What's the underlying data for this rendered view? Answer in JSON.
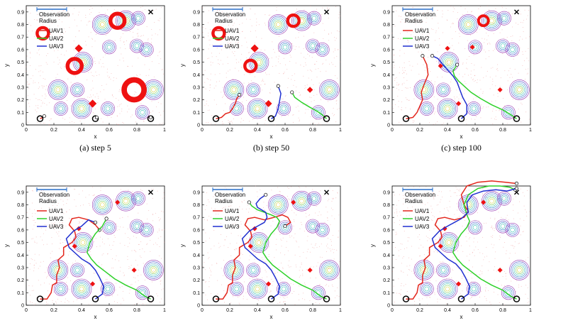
{
  "colors": {
    "uav1": "#e3261c",
    "uav2": "#2fd12a",
    "uav3": "#1f2fd0",
    "obs_bar": "#2a6fc9",
    "target": "#ee1111",
    "noise": "#e86a6a"
  },
  "common": {
    "xlabel": "x",
    "ylabel": "y",
    "xlim": [
      0,
      1
    ],
    "ylim": [
      0,
      0.95
    ],
    "xticks": [
      "0",
      "0.2",
      "0.4",
      "0.6",
      "0.8",
      "1"
    ],
    "yticks": [
      "0",
      "0.1",
      "0.2",
      "0.3",
      "0.4",
      "0.5",
      "0.6",
      "0.7",
      "0.8",
      "0.9"
    ],
    "legend": {
      "obs_line1": "Observation",
      "obs_line2": "Radius",
      "uav1": "UAV1",
      "uav2": "UAV2",
      "uav3": "UAV3"
    }
  },
  "chart_data": [
    {
      "type": "line",
      "caption": "(a)  step 5",
      "series": [
        {
          "name": "UAV1",
          "x": [
            0.1,
            0.12,
            0.13
          ],
          "y": [
            0.05,
            0.06,
            0.07
          ]
        },
        {
          "name": "UAV2",
          "x": [
            0.9,
            0.9
          ],
          "y": [
            0.05,
            0.06
          ]
        },
        {
          "name": "UAV3",
          "x": [
            0.5,
            0.51
          ],
          "y": [
            0.05,
            0.06
          ]
        }
      ],
      "targets": [
        [
          0.66,
          0.83
        ],
        [
          0.12,
          0.73
        ],
        [
          0.38,
          0.61
        ],
        [
          0.35,
          0.47
        ],
        [
          0.48,
          0.17
        ],
        [
          0.78,
          0.28
        ]
      ],
      "target_sizes": [
        10,
        8,
        6,
        10,
        6,
        14
      ]
    },
    {
      "type": "line",
      "caption": "(b)  step 50",
      "series": [
        {
          "name": "UAV1",
          "x": [
            0.1,
            0.14,
            0.17,
            0.2,
            0.22,
            0.24,
            0.25,
            0.27
          ],
          "y": [
            0.05,
            0.06,
            0.09,
            0.1,
            0.13,
            0.17,
            0.21,
            0.24
          ]
        },
        {
          "name": "UAV2",
          "x": [
            0.9,
            0.87,
            0.83,
            0.78,
            0.72,
            0.67,
            0.65
          ],
          "y": [
            0.05,
            0.08,
            0.11,
            0.14,
            0.18,
            0.22,
            0.26
          ]
        },
        {
          "name": "UAV3",
          "x": [
            0.5,
            0.53,
            0.55,
            0.56,
            0.57,
            0.55
          ],
          "y": [
            0.05,
            0.07,
            0.13,
            0.19,
            0.25,
            0.31
          ]
        }
      ],
      "targets": [
        [
          0.66,
          0.83
        ],
        [
          0.12,
          0.73
        ],
        [
          0.38,
          0.61
        ],
        [
          0.35,
          0.47
        ],
        [
          0.48,
          0.17
        ],
        [
          0.78,
          0.28
        ]
      ],
      "target_sizes": [
        8,
        8,
        6,
        8,
        5,
        4
      ]
    },
    {
      "type": "line",
      "caption": "(c)  step 100",
      "series": [
        {
          "name": "UAV1",
          "x": [
            0.1,
            0.15,
            0.18,
            0.2,
            0.22,
            0.21,
            0.23,
            0.26,
            0.25,
            0.22
          ],
          "y": [
            0.05,
            0.06,
            0.1,
            0.15,
            0.2,
            0.26,
            0.32,
            0.4,
            0.48,
            0.55
          ]
        },
        {
          "name": "UAV2",
          "x": [
            0.9,
            0.86,
            0.8,
            0.72,
            0.64,
            0.57,
            0.52,
            0.48,
            0.45,
            0.44,
            0.47
          ],
          "y": [
            0.05,
            0.08,
            0.12,
            0.16,
            0.21,
            0.26,
            0.31,
            0.35,
            0.39,
            0.43,
            0.48
          ]
        },
        {
          "name": "UAV3",
          "x": [
            0.5,
            0.54,
            0.54,
            0.51,
            0.49,
            0.47,
            0.44,
            0.4,
            0.36,
            0.33,
            0.29
          ],
          "y": [
            0.05,
            0.09,
            0.16,
            0.22,
            0.28,
            0.34,
            0.39,
            0.44,
            0.49,
            0.53,
            0.55
          ]
        }
      ],
      "targets": [
        [
          0.66,
          0.83
        ],
        [
          0.58,
          0.62
        ],
        [
          0.4,
          0.61
        ],
        [
          0.35,
          0.47
        ],
        [
          0.48,
          0.17
        ],
        [
          0.78,
          0.28
        ]
      ],
      "target_sizes": [
        7,
        3,
        3,
        3,
        3,
        3
      ]
    },
    {
      "type": "line",
      "caption": "",
      "series": [
        {
          "name": "UAV1",
          "x": [
            0.1,
            0.15,
            0.18,
            0.19,
            0.22,
            0.22,
            0.24,
            0.23,
            0.27,
            0.27,
            0.33,
            0.36,
            0.35,
            0.31,
            0.33,
            0.38,
            0.45,
            0.5,
            0.53
          ],
          "y": [
            0.05,
            0.05,
            0.1,
            0.16,
            0.18,
            0.24,
            0.3,
            0.36,
            0.4,
            0.46,
            0.5,
            0.54,
            0.59,
            0.64,
            0.69,
            0.7,
            0.68,
            0.64,
            0.6
          ]
        },
        {
          "name": "UAV2",
          "x": [
            0.9,
            0.86,
            0.8,
            0.72,
            0.64,
            0.57,
            0.51,
            0.47,
            0.44,
            0.46,
            0.5,
            0.55,
            0.58
          ],
          "y": [
            0.05,
            0.07,
            0.12,
            0.16,
            0.21,
            0.27,
            0.32,
            0.37,
            0.42,
            0.5,
            0.57,
            0.63,
            0.69
          ]
        },
        {
          "name": "UAV3",
          "x": [
            0.5,
            0.55,
            0.56,
            0.53,
            0.5,
            0.46,
            0.4,
            0.36,
            0.31,
            0.29,
            0.34,
            0.4,
            0.45,
            0.5
          ],
          "y": [
            0.05,
            0.09,
            0.15,
            0.22,
            0.28,
            0.33,
            0.37,
            0.41,
            0.46,
            0.53,
            0.59,
            0.63,
            0.68,
            0.66
          ]
        }
      ],
      "targets": [
        [
          0.66,
          0.82
        ],
        [
          0.38,
          0.61
        ],
        [
          0.35,
          0.47
        ],
        [
          0.48,
          0.17
        ],
        [
          0.78,
          0.28
        ]
      ],
      "target_sizes": [
        3,
        3,
        3,
        3,
        3
      ]
    },
    {
      "type": "line",
      "caption": "",
      "series": [
        {
          "name": "UAV1",
          "x": [
            0.1,
            0.15,
            0.18,
            0.19,
            0.22,
            0.22,
            0.24,
            0.23,
            0.27,
            0.27,
            0.33,
            0.36,
            0.35,
            0.31,
            0.33,
            0.38,
            0.45,
            0.52,
            0.58,
            0.62,
            0.64,
            0.6
          ],
          "y": [
            0.05,
            0.05,
            0.1,
            0.16,
            0.18,
            0.24,
            0.3,
            0.36,
            0.4,
            0.46,
            0.5,
            0.54,
            0.59,
            0.64,
            0.69,
            0.7,
            0.68,
            0.7,
            0.72,
            0.7,
            0.66,
            0.63
          ]
        },
        {
          "name": "UAV2",
          "x": [
            0.9,
            0.86,
            0.8,
            0.72,
            0.64,
            0.57,
            0.51,
            0.47,
            0.44,
            0.46,
            0.5,
            0.54,
            0.56,
            0.54,
            0.5,
            0.45,
            0.4,
            0.36,
            0.34
          ],
          "y": [
            0.05,
            0.07,
            0.12,
            0.16,
            0.21,
            0.27,
            0.32,
            0.37,
            0.42,
            0.5,
            0.57,
            0.62,
            0.67,
            0.7,
            0.72,
            0.74,
            0.76,
            0.79,
            0.82
          ]
        },
        {
          "name": "UAV3",
          "x": [
            0.5,
            0.55,
            0.56,
            0.53,
            0.5,
            0.46,
            0.4,
            0.36,
            0.31,
            0.29,
            0.34,
            0.4,
            0.45,
            0.47,
            0.46,
            0.43,
            0.4,
            0.39,
            0.42,
            0.46
          ],
          "y": [
            0.05,
            0.09,
            0.15,
            0.22,
            0.28,
            0.33,
            0.37,
            0.41,
            0.46,
            0.53,
            0.59,
            0.63,
            0.66,
            0.7,
            0.74,
            0.76,
            0.78,
            0.81,
            0.85,
            0.88
          ]
        }
      ],
      "targets": [
        [
          0.66,
          0.82
        ],
        [
          0.38,
          0.61
        ],
        [
          0.35,
          0.47
        ],
        [
          0.48,
          0.17
        ],
        [
          0.78,
          0.28
        ]
      ],
      "target_sizes": [
        3,
        3,
        3,
        3,
        3
      ]
    },
    {
      "type": "line",
      "caption": "",
      "series": [
        {
          "name": "UAV1",
          "x": [
            0.1,
            0.15,
            0.18,
            0.19,
            0.22,
            0.22,
            0.24,
            0.23,
            0.27,
            0.27,
            0.33,
            0.36,
            0.35,
            0.31,
            0.33,
            0.38,
            0.45,
            0.52,
            0.55,
            0.52,
            0.5,
            0.54,
            0.62,
            0.72,
            0.82,
            0.9
          ],
          "y": [
            0.05,
            0.05,
            0.1,
            0.16,
            0.18,
            0.24,
            0.3,
            0.36,
            0.4,
            0.46,
            0.5,
            0.54,
            0.59,
            0.64,
            0.69,
            0.7,
            0.68,
            0.7,
            0.75,
            0.8,
            0.88,
            0.95,
            0.98,
            0.99,
            0.98,
            0.97
          ]
        },
        {
          "name": "UAV2",
          "x": [
            0.9,
            0.86,
            0.8,
            0.72,
            0.64,
            0.57,
            0.51,
            0.47,
            0.44,
            0.46,
            0.5,
            0.54,
            0.56,
            0.54,
            0.52,
            0.55,
            0.62,
            0.7,
            0.78,
            0.85,
            0.89
          ],
          "y": [
            0.05,
            0.07,
            0.12,
            0.16,
            0.21,
            0.27,
            0.32,
            0.37,
            0.42,
            0.5,
            0.57,
            0.62,
            0.67,
            0.72,
            0.8,
            0.88,
            0.93,
            0.95,
            0.95,
            0.94,
            0.92
          ]
        },
        {
          "name": "UAV3",
          "x": [
            0.5,
            0.55,
            0.56,
            0.53,
            0.5,
            0.46,
            0.4,
            0.36,
            0.31,
            0.29,
            0.34,
            0.4,
            0.45,
            0.5,
            0.55,
            0.54,
            0.58,
            0.66,
            0.75,
            0.83,
            0.9
          ],
          "y": [
            0.05,
            0.09,
            0.15,
            0.22,
            0.28,
            0.33,
            0.37,
            0.41,
            0.46,
            0.53,
            0.59,
            0.63,
            0.66,
            0.69,
            0.74,
            0.82,
            0.88,
            0.91,
            0.92,
            0.91,
            0.93
          ]
        }
      ],
      "targets": [
        [
          0.66,
          0.82
        ],
        [
          0.38,
          0.61
        ],
        [
          0.35,
          0.47
        ],
        [
          0.48,
          0.17
        ],
        [
          0.78,
          0.28
        ]
      ],
      "target_sizes": [
        3,
        3,
        3,
        3,
        3
      ]
    }
  ]
}
